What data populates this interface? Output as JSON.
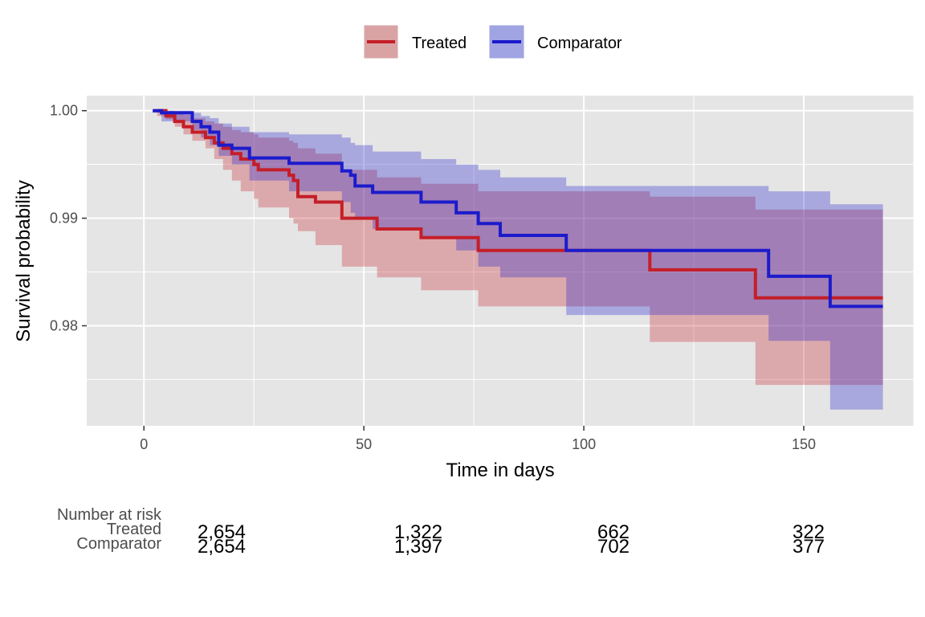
{
  "chart_data": {
    "type": "line",
    "subtype": "kaplan-meier-step",
    "xlabel": "Time in days",
    "ylabel": "Survival probability",
    "xlim": [
      -13,
      175
    ],
    "ylim": [
      0.9707,
      1.0014
    ],
    "x_ticks": [
      0,
      50,
      100,
      150
    ],
    "x_tick_labels": [
      "0",
      "50",
      "100",
      "150"
    ],
    "y_ticks": [
      0.98,
      0.99,
      1.0
    ],
    "y_tick_labels": [
      "0.98",
      "0.99",
      "1.00"
    ],
    "grid": true,
    "legend_position": "top",
    "series": [
      {
        "name": "Treated",
        "color": "#c41e28",
        "fill_color": "#d9a3a4",
        "x": [
          3,
          5,
          7,
          9,
          11,
          14,
          16,
          18,
          20,
          22,
          25,
          26,
          33,
          34,
          35,
          39,
          45,
          53,
          63,
          76,
          96,
          115,
          139,
          168
        ],
        "y": [
          1.0,
          0.9995,
          0.999,
          0.9985,
          0.998,
          0.9975,
          0.997,
          0.9965,
          0.996,
          0.9955,
          0.995,
          0.9945,
          0.994,
          0.9935,
          0.992,
          0.9915,
          0.99,
          0.989,
          0.9882,
          0.987,
          0.987,
          0.9852,
          0.9826,
          0.9826
        ],
        "lower": [
          0.9995,
          0.9992,
          0.9985,
          0.9978,
          0.9972,
          0.9965,
          0.9955,
          0.9945,
          0.9935,
          0.9925,
          0.9918,
          0.991,
          0.99,
          0.9895,
          0.9888,
          0.9875,
          0.9855,
          0.9845,
          0.9833,
          0.9818,
          0.9818,
          0.9785,
          0.9745,
          0.9745
        ],
        "upper": [
          1.0,
          1.0,
          0.9998,
          0.9996,
          0.9993,
          0.999,
          0.9988,
          0.9985,
          0.9982,
          0.998,
          0.9978,
          0.9975,
          0.9972,
          0.997,
          0.9965,
          0.996,
          0.9945,
          0.9938,
          0.9932,
          0.9925,
          0.9925,
          0.992,
          0.9908,
          0.9908
        ]
      },
      {
        "name": "Comparator",
        "color": "#1c1bcc",
        "fill_color": "#a0a4e2",
        "x": [
          2,
          4,
          11,
          13,
          15,
          17,
          20,
          24,
          33,
          45,
          47,
          48,
          52,
          63,
          71,
          76,
          81,
          96,
          142,
          156,
          168
        ],
        "y": [
          1.0,
          0.9998,
          0.999,
          0.9985,
          0.998,
          0.9968,
          0.9965,
          0.9956,
          0.9951,
          0.9944,
          0.994,
          0.993,
          0.9924,
          0.9915,
          0.9905,
          0.9895,
          0.9884,
          0.987,
          0.9846,
          0.9818,
          0.9818
        ],
        "lower": [
          0.9998,
          0.999,
          0.9982,
          0.9975,
          0.9968,
          0.9958,
          0.995,
          0.9935,
          0.9925,
          0.9915,
          0.9905,
          0.99,
          0.989,
          0.9882,
          0.987,
          0.9855,
          0.9845,
          0.981,
          0.9786,
          0.9722,
          0.9722
        ],
        "upper": [
          1.0,
          1.0,
          0.9998,
          0.9995,
          0.9993,
          0.9988,
          0.9985,
          0.998,
          0.9978,
          0.9975,
          0.997,
          0.9968,
          0.9962,
          0.9955,
          0.995,
          0.9945,
          0.9938,
          0.993,
          0.9925,
          0.9913,
          0.9913
        ]
      }
    ],
    "risk_table": {
      "title": "Number at risk",
      "times": [
        36,
        126,
        216,
        306
      ],
      "rows": [
        {
          "label": "Treated",
          "values": [
            "2,654",
            "1,322",
            "662",
            "322"
          ]
        },
        {
          "label": "Comparator",
          "values": [
            "2,654",
            "1,397",
            "702",
            "377"
          ]
        }
      ]
    }
  }
}
